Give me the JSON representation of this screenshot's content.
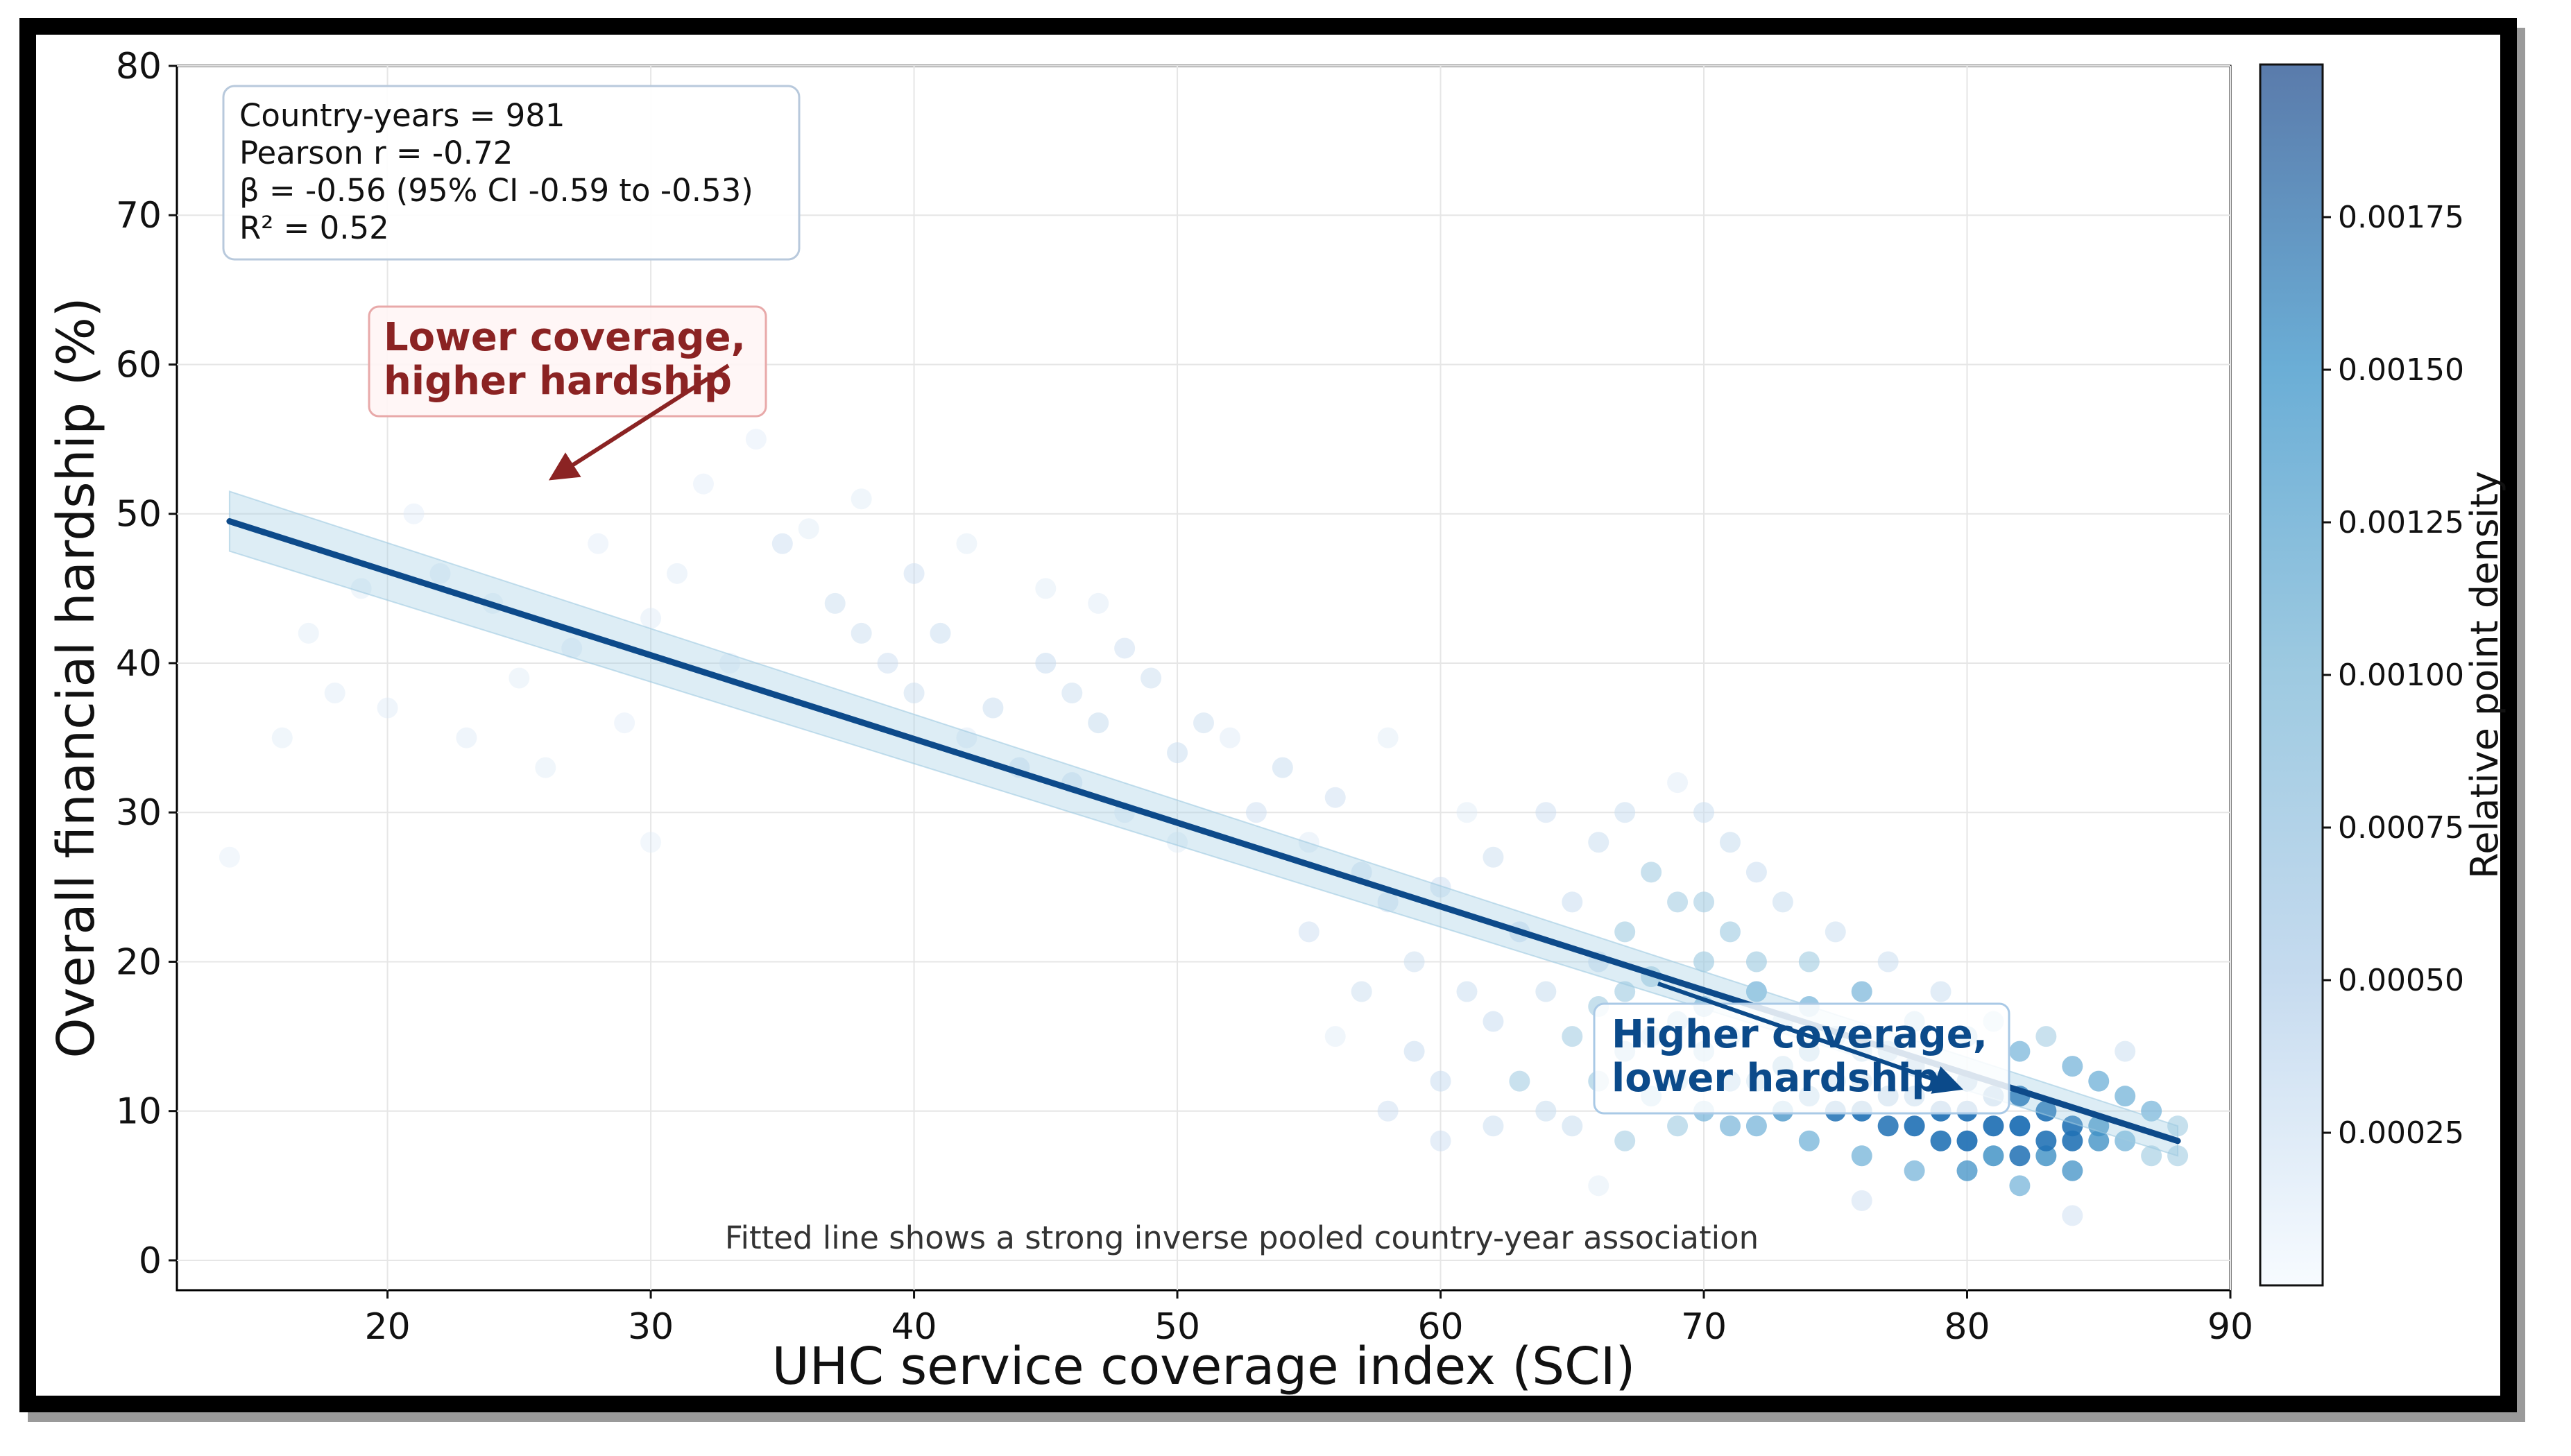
{
  "chart_data": {
    "type": "scatter",
    "xlabel": "UHC service coverage index (SCI)",
    "ylabel": "Overall financial hardship (%)",
    "xlim": [
      12,
      90
    ],
    "ylim": [
      -2,
      80
    ],
    "xticks": [
      20,
      30,
      40,
      50,
      60,
      70,
      80,
      90
    ],
    "yticks": [
      0,
      10,
      20,
      30,
      40,
      50,
      60,
      70,
      80
    ],
    "grid": true,
    "stats_box": {
      "line1": "Country-years = 981",
      "line2": "Pearson r = -0.72",
      "line3": "β = -0.56 (95% CI -0.59 to -0.53)",
      "line4": "R² = 0.52"
    },
    "fit_line": {
      "x": [
        14,
        88
      ],
      "y": [
        49.5,
        8
      ],
      "color": "#0d4a8a"
    },
    "annotations": {
      "low_coverage": {
        "line1": "Lower coverage,",
        "line2": "higher hardship",
        "color": "#8b2323",
        "arrow_tip": [
          26,
          52
        ]
      },
      "high_coverage": {
        "line1": "Higher coverage,",
        "line2": "lower hardship",
        "color": "#0b4a8a",
        "arrow_tip": [
          80,
          11
        ]
      }
    },
    "footnote": "Fitted line shows a strong inverse pooled country-year association",
    "colorbar": {
      "label": "Relative point density",
      "ticks": [
        "0.00025",
        "0.00050",
        "0.00075",
        "0.00100",
        "0.00125",
        "0.00150",
        "0.00175"
      ],
      "tick_values": [
        0.00025,
        0.0005,
        0.00075,
        0.001,
        0.00125,
        0.0015,
        0.00175
      ],
      "range": [
        0.0,
        0.002
      ],
      "colormap": "Blues"
    },
    "points": [
      [
        14,
        27
      ],
      [
        16,
        35
      ],
      [
        17,
        42
      ],
      [
        18,
        38
      ],
      [
        19,
        45
      ],
      [
        20,
        37
      ],
      [
        21,
        50
      ],
      [
        22,
        46
      ],
      [
        23,
        35
      ],
      [
        24,
        44
      ],
      [
        25,
        39
      ],
      [
        26,
        33
      ],
      [
        27,
        41
      ],
      [
        28,
        48
      ],
      [
        29,
        36
      ],
      [
        30,
        43
      ],
      [
        30,
        28
      ],
      [
        31,
        46
      ],
      [
        32,
        52
      ],
      [
        33,
        40
      ],
      [
        34,
        55
      ],
      [
        35,
        48
      ],
      [
        36,
        49
      ],
      [
        37,
        44
      ],
      [
        38,
        51
      ],
      [
        38,
        42
      ],
      [
        39,
        40
      ],
      [
        40,
        38
      ],
      [
        40,
        46
      ],
      [
        41,
        42
      ],
      [
        42,
        35
      ],
      [
        42,
        48
      ],
      [
        43,
        37
      ],
      [
        44,
        33
      ],
      [
        45,
        45
      ],
      [
        45,
        40
      ],
      [
        46,
        38
      ],
      [
        46,
        32
      ],
      [
        47,
        36
      ],
      [
        47,
        44
      ],
      [
        48,
        30
      ],
      [
        48,
        41
      ],
      [
        49,
        39
      ],
      [
        50,
        34
      ],
      [
        50,
        28
      ],
      [
        51,
        36
      ],
      [
        52,
        35
      ],
      [
        53,
        30
      ],
      [
        54,
        33
      ],
      [
        55,
        28
      ],
      [
        55,
        22
      ],
      [
        56,
        31
      ],
      [
        56,
        15
      ],
      [
        57,
        26
      ],
      [
        57,
        18
      ],
      [
        58,
        35
      ],
      [
        58,
        24
      ],
      [
        59,
        20
      ],
      [
        59,
        14
      ],
      [
        60,
        25
      ],
      [
        60,
        12
      ],
      [
        61,
        30
      ],
      [
        61,
        18
      ],
      [
        62,
        16
      ],
      [
        62,
        27
      ],
      [
        63,
        22
      ],
      [
        63,
        12
      ],
      [
        64,
        30
      ],
      [
        64,
        18
      ],
      [
        65,
        24
      ],
      [
        65,
        15
      ],
      [
        65,
        9
      ],
      [
        66,
        28
      ],
      [
        66,
        20
      ],
      [
        66,
        12
      ],
      [
        67,
        30
      ],
      [
        67,
        22
      ],
      [
        67,
        14
      ],
      [
        67,
        8
      ],
      [
        68,
        26
      ],
      [
        68,
        19
      ],
      [
        68,
        11
      ],
      [
        69,
        32
      ],
      [
        69,
        24
      ],
      [
        69,
        16
      ],
      [
        69,
        9
      ],
      [
        70,
        30
      ],
      [
        70,
        20
      ],
      [
        70,
        14
      ],
      [
        70,
        10
      ],
      [
        71,
        28
      ],
      [
        71,
        22
      ],
      [
        71,
        15
      ],
      [
        71,
        9
      ],
      [
        72,
        26
      ],
      [
        72,
        18
      ],
      [
        72,
        12
      ],
      [
        73,
        24
      ],
      [
        73,
        16
      ],
      [
        73,
        10
      ],
      [
        74,
        20
      ],
      [
        74,
        14
      ],
      [
        74,
        8
      ],
      [
        75,
        22
      ],
      [
        75,
        15
      ],
      [
        75,
        10
      ],
      [
        76,
        18
      ],
      [
        76,
        12
      ],
      [
        76,
        7
      ],
      [
        77,
        20
      ],
      [
        77,
        14
      ],
      [
        77,
        9
      ],
      [
        78,
        16
      ],
      [
        78,
        11
      ],
      [
        78,
        6
      ],
      [
        79,
        18
      ],
      [
        79,
        12
      ],
      [
        79,
        8
      ],
      [
        80,
        15
      ],
      [
        80,
        10
      ],
      [
        80,
        6
      ],
      [
        81,
        16
      ],
      [
        81,
        11
      ],
      [
        81,
        7
      ],
      [
        82,
        14
      ],
      [
        82,
        9
      ],
      [
        82,
        5
      ],
      [
        83,
        15
      ],
      [
        83,
        10
      ],
      [
        83,
        7
      ],
      [
        84,
        13
      ],
      [
        84,
        9
      ],
      [
        84,
        6
      ],
      [
        85,
        12
      ],
      [
        85,
        8
      ],
      [
        86,
        11
      ],
      [
        86,
        8
      ],
      [
        87,
        10
      ],
      [
        87,
        7
      ],
      [
        88,
        9
      ],
      [
        88,
        7
      ],
      [
        66,
        17
      ],
      [
        68,
        15
      ],
      [
        70,
        17
      ],
      [
        72,
        9
      ],
      [
        74,
        11
      ],
      [
        76,
        14
      ],
      [
        78,
        9
      ],
      [
        80,
        8
      ],
      [
        82,
        11
      ],
      [
        84,
        8
      ],
      [
        69,
        12
      ],
      [
        71,
        12
      ],
      [
        73,
        13
      ],
      [
        75,
        12
      ],
      [
        77,
        11
      ],
      [
        79,
        10
      ],
      [
        81,
        9
      ],
      [
        83,
        8
      ],
      [
        85,
        9
      ],
      [
        67,
        18
      ],
      [
        70,
        24
      ],
      [
        72,
        20
      ],
      [
        74,
        17
      ],
      [
        76,
        10
      ],
      [
        78,
        13
      ],
      [
        80,
        12
      ],
      [
        82,
        7
      ],
      [
        64,
        10
      ],
      [
        62,
        9
      ],
      [
        60,
        8
      ],
      [
        58,
        10
      ],
      [
        66,
        5
      ],
      [
        76,
        4
      ],
      [
        84,
        3
      ],
      [
        86,
        14
      ]
    ]
  }
}
